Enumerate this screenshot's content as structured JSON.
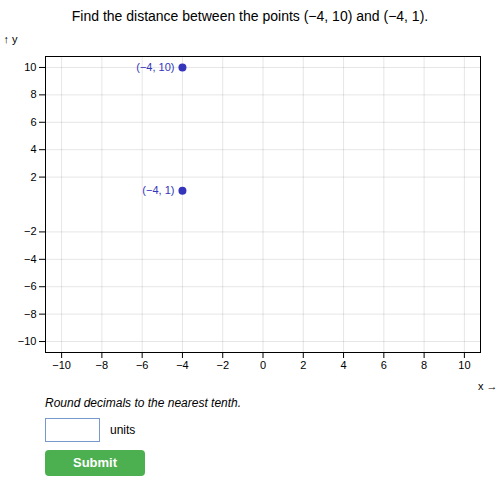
{
  "chart_data": {
    "type": "scatter",
    "title": "Find the distance between the points (−4, 10) and (−4, 1).",
    "x": [
      -4,
      -4
    ],
    "values": [
      10,
      1
    ],
    "value_labels": [
      "(−4, 10)",
      "(−4, 1)"
    ],
    "color": "#3535bb",
    "xlabel": "x",
    "ylabel": "y",
    "xlim": [
      -10.8,
      10.8
    ],
    "ylim": [
      -10.8,
      10.8
    ],
    "xticks": [
      {
        "value": -10,
        "label": "−10"
      },
      {
        "value": -8,
        "label": "−8"
      },
      {
        "value": -6,
        "label": "−6"
      },
      {
        "value": -4,
        "label": "−4"
      },
      {
        "value": -2,
        "label": "−2"
      },
      0,
      2,
      4,
      6,
      8,
      10
    ],
    "yticks": [
      {
        "value": -10,
        "label": "−10"
      },
      {
        "value": -8,
        "label": "−8"
      },
      {
        "value": -6,
        "label": "−6"
      },
      {
        "value": -4,
        "label": "−4"
      },
      {
        "value": -2,
        "label": "−2"
      },
      2,
      4,
      6,
      8,
      10
    ],
    "grid": true,
    "annotations": [
      "Round decimals to the nearest tenth.",
      "units",
      "Submit"
    ]
  }
}
